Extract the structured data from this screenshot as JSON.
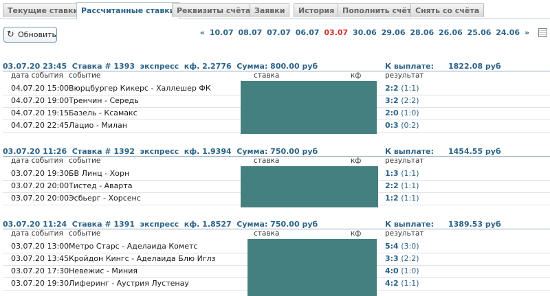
{
  "tabs": [
    {
      "label": "Текущие ставки",
      "active": false
    },
    {
      "label": "Рассчитанные ставки",
      "active": true
    },
    {
      "label": "Реквизиты счёта",
      "active": false
    },
    {
      "label": "Заявки",
      "active": false
    },
    {
      "label": "История",
      "active": false
    },
    {
      "label": "Пополнить счёт",
      "active": false
    },
    {
      "label": "Снять со счёта",
      "active": false
    }
  ],
  "toolbar": {
    "refresh_label": "Обновить",
    "prev": "«",
    "next": "»",
    "dates": [
      "10.07",
      "08.07",
      "07.07",
      "06.07",
      "03.07",
      "30.06",
      "29.06",
      "28.06",
      "26.06",
      "25.06",
      "24.06"
    ],
    "current_date": "03.07"
  },
  "columns": {
    "date": "дата события",
    "event": "событие",
    "bet": "ставка",
    "coef": "кф",
    "result": "результат"
  },
  "pay_label": "К выплате:",
  "bets": [
    {
      "header": "03.07.20 23:45  Ставка # 1393  экспресс  кф. 2.2776  Сумма: 800.00 руб",
      "payout": "1822.08 руб",
      "events": [
        {
          "date": "04.07.20 15:00",
          "event": "Вюрцбургер Кикерс - Халлешер ФК",
          "score": "2:2",
          "half": "(1:1)"
        },
        {
          "date": "04.07.20 19:00",
          "event": "Тренчин - Середь",
          "score": "3:2",
          "half": "(2:2)"
        },
        {
          "date": "04.07.20 19:15",
          "event": "Базель - Ксамакс",
          "score": "2:0",
          "half": "(1:0)"
        },
        {
          "date": "04.07.20 22:45",
          "event": "Лацио - Милан",
          "score": "0:3",
          "half": "(0:2)"
        }
      ]
    },
    {
      "header": "03.07.20 11:26  Ставка # 1392  экспресс  кф. 1.9394  Сумма: 750.00 руб",
      "payout": "1454.55 руб",
      "events": [
        {
          "date": "03.07.20 19:30",
          "event": "БВ Линц - Хорн",
          "score": "1:3",
          "half": "(1:1)"
        },
        {
          "date": "03.07.20 20:00",
          "event": "Тистед - Аварта",
          "score": "2:2",
          "half": "(1:1)"
        },
        {
          "date": "03.07.20 20:00",
          "event": "Эсбьерг - Хорсенс",
          "score": "1:2",
          "half": "(1:1)"
        }
      ]
    },
    {
      "header": "03.07.20 11:24  Ставка # 1391  экспресс  кф. 1.8527  Сумма: 750.00 руб",
      "payout": "1389.53 руб",
      "events": [
        {
          "date": "03.07.20 13:00",
          "event": "Метро Старс - Аделаида Кометс",
          "score": "5:4",
          "half": "(3:0)"
        },
        {
          "date": "03.07.20 13:45",
          "event": "Кройдон Кингс - Аделаида Блю Иглз",
          "score": "3:3",
          "half": "(2:2)"
        },
        {
          "date": "03.07.20 17:30",
          "event": "Невежис - Миния",
          "score": "4:0",
          "half": "(1:0)"
        },
        {
          "date": "03.07.20 19:30",
          "event": "Лиферинг - Аустрия Лустенау",
          "score": "4:2",
          "half": "(1:1)"
        }
      ]
    }
  ],
  "colors": {
    "accent": "#2b6389",
    "current_date": "#d0312d",
    "hidden_block": "#458080"
  }
}
